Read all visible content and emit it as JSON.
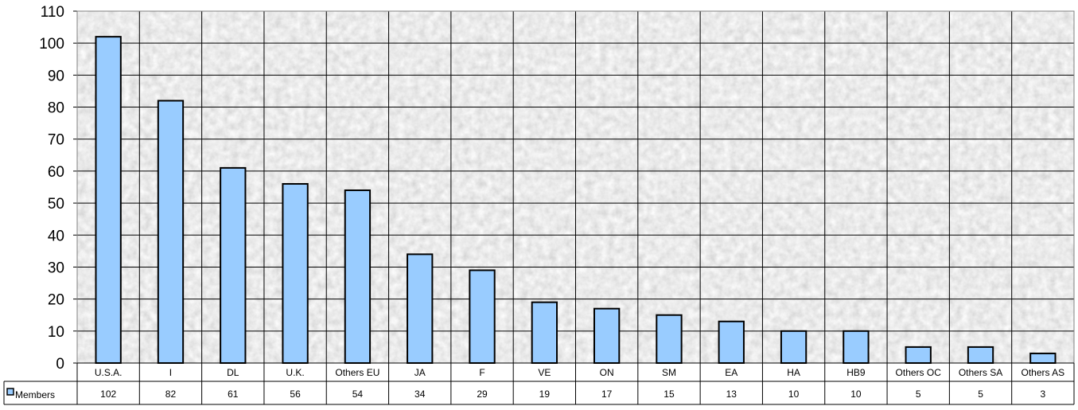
{
  "chart_data": {
    "type": "bar",
    "categories": [
      "U.S.A.",
      "I",
      "DL",
      "U.K.",
      "Others EU",
      "JA",
      "F",
      "VE",
      "ON",
      "SM",
      "EA",
      "HA",
      "HB9",
      "Others OC",
      "Others SA",
      "Others AS"
    ],
    "series": [
      {
        "name": "Members",
        "values": [
          102,
          82,
          61,
          56,
          54,
          34,
          29,
          19,
          17,
          15,
          13,
          10,
          10,
          5,
          5,
          3
        ],
        "color": "#99ccff"
      }
    ],
    "yticks": [
      0,
      10,
      20,
      30,
      40,
      50,
      60,
      70,
      80,
      90,
      100,
      110
    ],
    "ylim": [
      0,
      110
    ],
    "grid": true,
    "legend": "in data table",
    "data_table": true,
    "title": "",
    "xlabel": "",
    "ylabel": ""
  }
}
